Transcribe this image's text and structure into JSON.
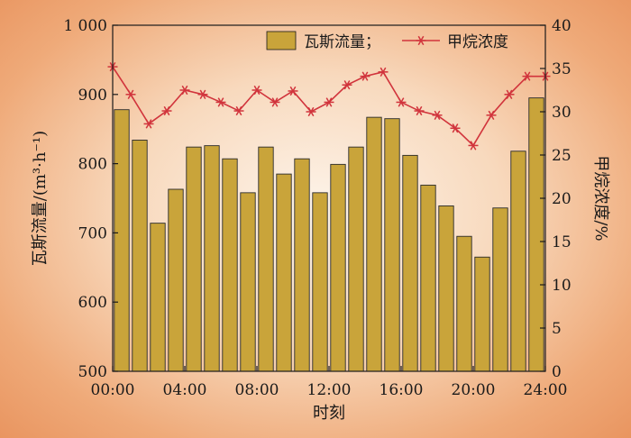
{
  "chart_data": {
    "type": "bar+line",
    "x_tick_labels": [
      "00:00",
      "04:00",
      "08:00",
      "12:00",
      "16:00",
      "20:00",
      "24:00"
    ],
    "xlabel": "时刻",
    "y_left": {
      "label": "瓦斯流量/(m³·h⁻¹)",
      "range": [
        500,
        1000
      ],
      "tick_values": [
        500,
        600,
        700,
        800,
        900,
        1000
      ],
      "tick_labels": [
        "500",
        "600",
        "700",
        "800",
        "900",
        "1 000"
      ]
    },
    "y_right": {
      "label": "甲烷浓度/%",
      "range": [
        0,
        40
      ],
      "tick_values": [
        0,
        5,
        10,
        15,
        20,
        25,
        30,
        35,
        40
      ],
      "tick_labels": [
        "0",
        "5",
        "10",
        "15",
        "20",
        "25",
        "30",
        "35",
        "40"
      ]
    },
    "series": [
      {
        "name": "瓦斯流量；",
        "type": "bar",
        "axis": "left",
        "color": "#c9a43a",
        "x_hours": [
          0,
          1,
          2,
          3,
          4,
          5,
          6,
          7,
          8,
          9,
          10,
          11,
          12,
          13,
          14,
          15,
          16,
          17,
          18,
          19,
          20,
          21,
          22,
          23
        ],
        "values": [
          878,
          834,
          714,
          763,
          824,
          826,
          807,
          758,
          824,
          785,
          807,
          758,
          799,
          824,
          867,
          865,
          812,
          769,
          739,
          695,
          665,
          736,
          818,
          895
        ]
      },
      {
        "name": "甲烷浓度",
        "type": "line",
        "axis": "right",
        "color": "#d1343c",
        "marker": "asterisk",
        "x_hours": [
          0,
          1,
          2,
          3,
          4,
          5,
          6,
          7,
          8,
          9,
          10,
          11,
          12,
          13,
          14,
          15,
          16,
          17,
          18,
          19,
          20,
          21,
          22,
          23,
          24
        ],
        "values": [
          35.2,
          32.0,
          28.6,
          30.1,
          32.5,
          32.0,
          31.1,
          30.1,
          32.5,
          31.1,
          32.4,
          30.0,
          31.1,
          33.1,
          34.1,
          34.6,
          31.1,
          30.1,
          29.6,
          28.1,
          26.1,
          29.6,
          32.0,
          34.1,
          34.1
        ]
      }
    ],
    "legend": {
      "placement": "top-right"
    }
  }
}
